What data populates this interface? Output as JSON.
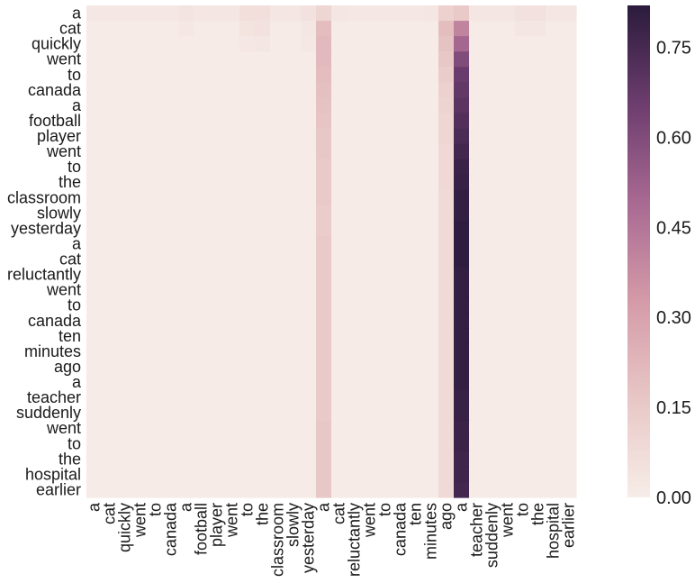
{
  "chart_data": {
    "type": "heatmap",
    "title": "",
    "xlabel": "",
    "ylabel": "",
    "x_tokens": [
      "a",
      "cat",
      "quickly",
      "went",
      "to",
      "canada",
      "a",
      "football",
      "player",
      "went",
      "to",
      "the",
      "classroom",
      "slowly",
      "yesterday",
      "a",
      "cat",
      "reluctantly",
      "went",
      "to",
      "canada",
      "ten",
      "minutes",
      "ago",
      "a",
      "teacher",
      "suddenly",
      "went",
      "to",
      "the",
      "hospital",
      "earlier"
    ],
    "y_tokens": [
      "a",
      "cat",
      "quickly",
      "went",
      "to",
      "canada",
      "a",
      "football",
      "player",
      "went",
      "to",
      "the",
      "classroom",
      "slowly",
      "yesterday",
      "a",
      "cat",
      "reluctantly",
      "went",
      "to",
      "canada",
      "ten",
      "minutes",
      "ago",
      "a",
      "teacher",
      "suddenly",
      "went",
      "to",
      "the",
      "hospital",
      "earlier"
    ],
    "colorbar": {
      "min": 0.0,
      "max": 0.82,
      "ticks": [
        "0.00",
        "0.15",
        "0.30",
        "0.45",
        "0.60",
        "0.75"
      ],
      "colors": [
        "#f7ede8",
        "#e8c7c6",
        "#d49aa8",
        "#a86992",
        "#6c3d6e",
        "#2b1b3c"
      ]
    },
    "grid": false,
    "legend": "colorbar-right",
    "values_note_free": true,
    "matrix": [
      [
        0.02,
        0.02,
        0.02,
        0.02,
        0.02,
        0.02,
        0.04,
        0.03,
        0.03,
        0.03,
        0.06,
        0.06,
        0.03,
        0.03,
        0.05,
        0.1,
        0.03,
        0.02,
        0.02,
        0.02,
        0.02,
        0.02,
        0.03,
        0.12,
        0.15,
        0.03,
        0.03,
        0.03,
        0.05,
        0.05,
        0.03,
        0.03
      ],
      [
        0.01,
        0.01,
        0.01,
        0.01,
        0.01,
        0.01,
        0.02,
        0.01,
        0.01,
        0.01,
        0.04,
        0.05,
        0.01,
        0.01,
        0.03,
        0.2,
        0.01,
        0.01,
        0.01,
        0.01,
        0.01,
        0.01,
        0.01,
        0.2,
        0.4,
        0.01,
        0.01,
        0.01,
        0.03,
        0.03,
        0.01,
        0.01
      ],
      [
        0.01,
        0.01,
        0.01,
        0.01,
        0.01,
        0.01,
        0.01,
        0.01,
        0.01,
        0.01,
        0.02,
        0.03,
        0.01,
        0.01,
        0.02,
        0.21,
        0.01,
        0.01,
        0.01,
        0.01,
        0.01,
        0.01,
        0.01,
        0.18,
        0.5,
        0.01,
        0.01,
        0.01,
        0.01,
        0.01,
        0.01,
        0.01
      ],
      [
        0.01,
        0.01,
        0.01,
        0.01,
        0.01,
        0.01,
        0.01,
        0.01,
        0.01,
        0.01,
        0.01,
        0.01,
        0.01,
        0.01,
        0.01,
        0.21,
        0.01,
        0.01,
        0.01,
        0.01,
        0.01,
        0.01,
        0.01,
        0.16,
        0.6,
        0.01,
        0.01,
        0.01,
        0.01,
        0.01,
        0.01,
        0.01
      ],
      [
        0.01,
        0.01,
        0.01,
        0.01,
        0.01,
        0.01,
        0.01,
        0.01,
        0.01,
        0.01,
        0.01,
        0.01,
        0.01,
        0.01,
        0.01,
        0.2,
        0.01,
        0.01,
        0.01,
        0.01,
        0.01,
        0.01,
        0.01,
        0.14,
        0.66,
        0.01,
        0.01,
        0.01,
        0.01,
        0.01,
        0.01,
        0.01
      ],
      [
        0.01,
        0.01,
        0.01,
        0.01,
        0.01,
        0.01,
        0.01,
        0.01,
        0.01,
        0.01,
        0.01,
        0.01,
        0.01,
        0.01,
        0.01,
        0.19,
        0.01,
        0.01,
        0.01,
        0.01,
        0.01,
        0.01,
        0.01,
        0.12,
        0.68,
        0.01,
        0.01,
        0.01,
        0.01,
        0.01,
        0.01,
        0.01
      ],
      [
        0.01,
        0.01,
        0.01,
        0.01,
        0.01,
        0.01,
        0.01,
        0.01,
        0.01,
        0.01,
        0.01,
        0.01,
        0.01,
        0.01,
        0.01,
        0.18,
        0.01,
        0.01,
        0.01,
        0.01,
        0.01,
        0.01,
        0.01,
        0.11,
        0.7,
        0.01,
        0.01,
        0.01,
        0.01,
        0.01,
        0.01,
        0.01
      ],
      [
        0.01,
        0.01,
        0.01,
        0.01,
        0.01,
        0.01,
        0.01,
        0.01,
        0.01,
        0.01,
        0.01,
        0.01,
        0.01,
        0.01,
        0.01,
        0.17,
        0.01,
        0.01,
        0.01,
        0.01,
        0.01,
        0.01,
        0.01,
        0.1,
        0.72,
        0.01,
        0.01,
        0.01,
        0.01,
        0.01,
        0.01,
        0.01
      ],
      [
        0.01,
        0.01,
        0.01,
        0.01,
        0.01,
        0.01,
        0.01,
        0.01,
        0.01,
        0.01,
        0.01,
        0.01,
        0.01,
        0.01,
        0.01,
        0.16,
        0.01,
        0.01,
        0.01,
        0.01,
        0.01,
        0.01,
        0.01,
        0.1,
        0.74,
        0.01,
        0.01,
        0.01,
        0.01,
        0.01,
        0.01,
        0.01
      ],
      [
        0.01,
        0.01,
        0.01,
        0.01,
        0.01,
        0.01,
        0.01,
        0.01,
        0.01,
        0.01,
        0.01,
        0.01,
        0.01,
        0.01,
        0.01,
        0.16,
        0.01,
        0.01,
        0.01,
        0.01,
        0.01,
        0.01,
        0.01,
        0.09,
        0.76,
        0.01,
        0.01,
        0.01,
        0.01,
        0.01,
        0.01,
        0.01
      ],
      [
        0.01,
        0.01,
        0.01,
        0.01,
        0.01,
        0.01,
        0.01,
        0.01,
        0.01,
        0.01,
        0.01,
        0.01,
        0.01,
        0.01,
        0.01,
        0.15,
        0.01,
        0.01,
        0.01,
        0.01,
        0.01,
        0.01,
        0.01,
        0.09,
        0.78,
        0.01,
        0.01,
        0.01,
        0.01,
        0.01,
        0.01,
        0.01
      ],
      [
        0.01,
        0.01,
        0.01,
        0.01,
        0.01,
        0.01,
        0.01,
        0.01,
        0.01,
        0.01,
        0.01,
        0.01,
        0.01,
        0.01,
        0.01,
        0.15,
        0.01,
        0.01,
        0.01,
        0.01,
        0.01,
        0.01,
        0.01,
        0.09,
        0.79,
        0.01,
        0.01,
        0.01,
        0.01,
        0.01,
        0.01,
        0.01
      ],
      [
        0.01,
        0.01,
        0.01,
        0.01,
        0.01,
        0.01,
        0.01,
        0.01,
        0.01,
        0.01,
        0.01,
        0.01,
        0.01,
        0.01,
        0.01,
        0.15,
        0.01,
        0.01,
        0.01,
        0.01,
        0.01,
        0.01,
        0.01,
        0.08,
        0.8,
        0.01,
        0.01,
        0.01,
        0.01,
        0.01,
        0.01,
        0.01
      ],
      [
        0.01,
        0.01,
        0.01,
        0.01,
        0.01,
        0.01,
        0.01,
        0.01,
        0.01,
        0.01,
        0.01,
        0.01,
        0.01,
        0.01,
        0.01,
        0.14,
        0.01,
        0.01,
        0.01,
        0.01,
        0.01,
        0.01,
        0.01,
        0.08,
        0.8,
        0.01,
        0.01,
        0.01,
        0.01,
        0.01,
        0.01,
        0.01
      ],
      [
        0.01,
        0.01,
        0.01,
        0.01,
        0.01,
        0.01,
        0.01,
        0.01,
        0.01,
        0.01,
        0.01,
        0.01,
        0.01,
        0.01,
        0.01,
        0.14,
        0.01,
        0.01,
        0.01,
        0.01,
        0.01,
        0.01,
        0.01,
        0.08,
        0.81,
        0.01,
        0.01,
        0.01,
        0.01,
        0.01,
        0.01,
        0.01
      ],
      [
        0.01,
        0.01,
        0.01,
        0.01,
        0.01,
        0.01,
        0.01,
        0.01,
        0.01,
        0.01,
        0.01,
        0.01,
        0.01,
        0.01,
        0.01,
        0.15,
        0.01,
        0.01,
        0.01,
        0.01,
        0.01,
        0.01,
        0.01,
        0.08,
        0.81,
        0.01,
        0.01,
        0.01,
        0.01,
        0.01,
        0.01,
        0.01
      ],
      [
        0.01,
        0.01,
        0.01,
        0.01,
        0.01,
        0.01,
        0.01,
        0.01,
        0.01,
        0.01,
        0.01,
        0.01,
        0.01,
        0.01,
        0.01,
        0.15,
        0.01,
        0.01,
        0.01,
        0.01,
        0.01,
        0.01,
        0.01,
        0.08,
        0.81,
        0.01,
        0.01,
        0.01,
        0.01,
        0.01,
        0.01,
        0.01
      ],
      [
        0.01,
        0.01,
        0.01,
        0.01,
        0.01,
        0.01,
        0.01,
        0.01,
        0.01,
        0.01,
        0.01,
        0.01,
        0.01,
        0.01,
        0.01,
        0.15,
        0.01,
        0.01,
        0.01,
        0.01,
        0.01,
        0.01,
        0.01,
        0.08,
        0.8,
        0.01,
        0.01,
        0.01,
        0.01,
        0.01,
        0.01,
        0.01
      ],
      [
        0.01,
        0.01,
        0.01,
        0.01,
        0.01,
        0.01,
        0.01,
        0.01,
        0.01,
        0.01,
        0.01,
        0.01,
        0.01,
        0.01,
        0.01,
        0.15,
        0.01,
        0.01,
        0.01,
        0.01,
        0.01,
        0.01,
        0.01,
        0.08,
        0.8,
        0.01,
        0.01,
        0.01,
        0.01,
        0.01,
        0.01,
        0.01
      ],
      [
        0.01,
        0.01,
        0.01,
        0.01,
        0.01,
        0.01,
        0.01,
        0.01,
        0.01,
        0.01,
        0.01,
        0.01,
        0.01,
        0.01,
        0.01,
        0.15,
        0.01,
        0.01,
        0.01,
        0.01,
        0.01,
        0.01,
        0.01,
        0.08,
        0.8,
        0.01,
        0.01,
        0.01,
        0.01,
        0.01,
        0.01,
        0.01
      ],
      [
        0.01,
        0.01,
        0.01,
        0.01,
        0.01,
        0.01,
        0.01,
        0.01,
        0.01,
        0.01,
        0.01,
        0.01,
        0.01,
        0.01,
        0.01,
        0.15,
        0.01,
        0.01,
        0.01,
        0.01,
        0.01,
        0.01,
        0.01,
        0.08,
        0.8,
        0.01,
        0.01,
        0.01,
        0.01,
        0.01,
        0.01,
        0.01
      ],
      [
        0.01,
        0.01,
        0.01,
        0.01,
        0.01,
        0.01,
        0.01,
        0.01,
        0.01,
        0.01,
        0.01,
        0.01,
        0.01,
        0.01,
        0.01,
        0.15,
        0.01,
        0.01,
        0.01,
        0.01,
        0.01,
        0.01,
        0.01,
        0.08,
        0.8,
        0.01,
        0.01,
        0.01,
        0.01,
        0.01,
        0.01,
        0.01
      ],
      [
        0.01,
        0.01,
        0.01,
        0.01,
        0.01,
        0.01,
        0.01,
        0.01,
        0.01,
        0.01,
        0.01,
        0.01,
        0.01,
        0.01,
        0.01,
        0.15,
        0.01,
        0.01,
        0.01,
        0.01,
        0.01,
        0.01,
        0.01,
        0.08,
        0.8,
        0.01,
        0.01,
        0.01,
        0.01,
        0.01,
        0.01,
        0.01
      ],
      [
        0.01,
        0.01,
        0.01,
        0.01,
        0.01,
        0.01,
        0.01,
        0.01,
        0.01,
        0.01,
        0.01,
        0.01,
        0.01,
        0.01,
        0.01,
        0.15,
        0.01,
        0.01,
        0.01,
        0.01,
        0.01,
        0.01,
        0.01,
        0.08,
        0.8,
        0.01,
        0.01,
        0.01,
        0.01,
        0.01,
        0.01,
        0.01
      ],
      [
        0.01,
        0.01,
        0.01,
        0.01,
        0.01,
        0.01,
        0.01,
        0.01,
        0.01,
        0.01,
        0.01,
        0.01,
        0.01,
        0.01,
        0.01,
        0.15,
        0.01,
        0.01,
        0.01,
        0.01,
        0.01,
        0.01,
        0.01,
        0.08,
        0.8,
        0.01,
        0.01,
        0.01,
        0.01,
        0.01,
        0.01,
        0.01
      ],
      [
        0.01,
        0.01,
        0.01,
        0.01,
        0.01,
        0.01,
        0.01,
        0.01,
        0.01,
        0.01,
        0.01,
        0.01,
        0.01,
        0.01,
        0.01,
        0.15,
        0.01,
        0.01,
        0.01,
        0.01,
        0.01,
        0.01,
        0.01,
        0.08,
        0.79,
        0.01,
        0.01,
        0.01,
        0.01,
        0.01,
        0.01,
        0.01
      ],
      [
        0.01,
        0.01,
        0.01,
        0.01,
        0.01,
        0.01,
        0.01,
        0.01,
        0.01,
        0.01,
        0.01,
        0.01,
        0.01,
        0.01,
        0.01,
        0.15,
        0.01,
        0.01,
        0.01,
        0.01,
        0.01,
        0.01,
        0.01,
        0.08,
        0.79,
        0.01,
        0.01,
        0.01,
        0.01,
        0.01,
        0.01,
        0.01
      ],
      [
        0.01,
        0.01,
        0.01,
        0.01,
        0.01,
        0.01,
        0.01,
        0.01,
        0.01,
        0.01,
        0.01,
        0.01,
        0.01,
        0.01,
        0.01,
        0.16,
        0.01,
        0.01,
        0.01,
        0.01,
        0.01,
        0.01,
        0.01,
        0.08,
        0.78,
        0.01,
        0.01,
        0.01,
        0.01,
        0.01,
        0.01,
        0.01
      ],
      [
        0.01,
        0.01,
        0.01,
        0.01,
        0.01,
        0.01,
        0.01,
        0.01,
        0.01,
        0.01,
        0.01,
        0.01,
        0.01,
        0.01,
        0.01,
        0.16,
        0.01,
        0.01,
        0.01,
        0.01,
        0.01,
        0.01,
        0.01,
        0.08,
        0.78,
        0.01,
        0.01,
        0.01,
        0.01,
        0.01,
        0.01,
        0.01
      ],
      [
        0.01,
        0.01,
        0.01,
        0.01,
        0.01,
        0.01,
        0.01,
        0.01,
        0.01,
        0.01,
        0.01,
        0.01,
        0.01,
        0.01,
        0.01,
        0.16,
        0.01,
        0.01,
        0.01,
        0.01,
        0.01,
        0.01,
        0.01,
        0.08,
        0.77,
        0.01,
        0.01,
        0.01,
        0.01,
        0.01,
        0.01,
        0.01
      ],
      [
        0.01,
        0.01,
        0.01,
        0.01,
        0.01,
        0.01,
        0.01,
        0.01,
        0.01,
        0.01,
        0.01,
        0.01,
        0.01,
        0.01,
        0.01,
        0.16,
        0.01,
        0.01,
        0.01,
        0.01,
        0.01,
        0.01,
        0.01,
        0.08,
        0.77,
        0.01,
        0.01,
        0.01,
        0.01,
        0.01,
        0.01,
        0.01
      ],
      [
        0.01,
        0.01,
        0.01,
        0.01,
        0.01,
        0.01,
        0.01,
        0.01,
        0.01,
        0.01,
        0.01,
        0.01,
        0.01,
        0.01,
        0.01,
        0.16,
        0.01,
        0.01,
        0.01,
        0.01,
        0.01,
        0.01,
        0.01,
        0.08,
        0.76,
        0.01,
        0.01,
        0.01,
        0.01,
        0.01,
        0.01,
        0.01
      ]
    ]
  }
}
